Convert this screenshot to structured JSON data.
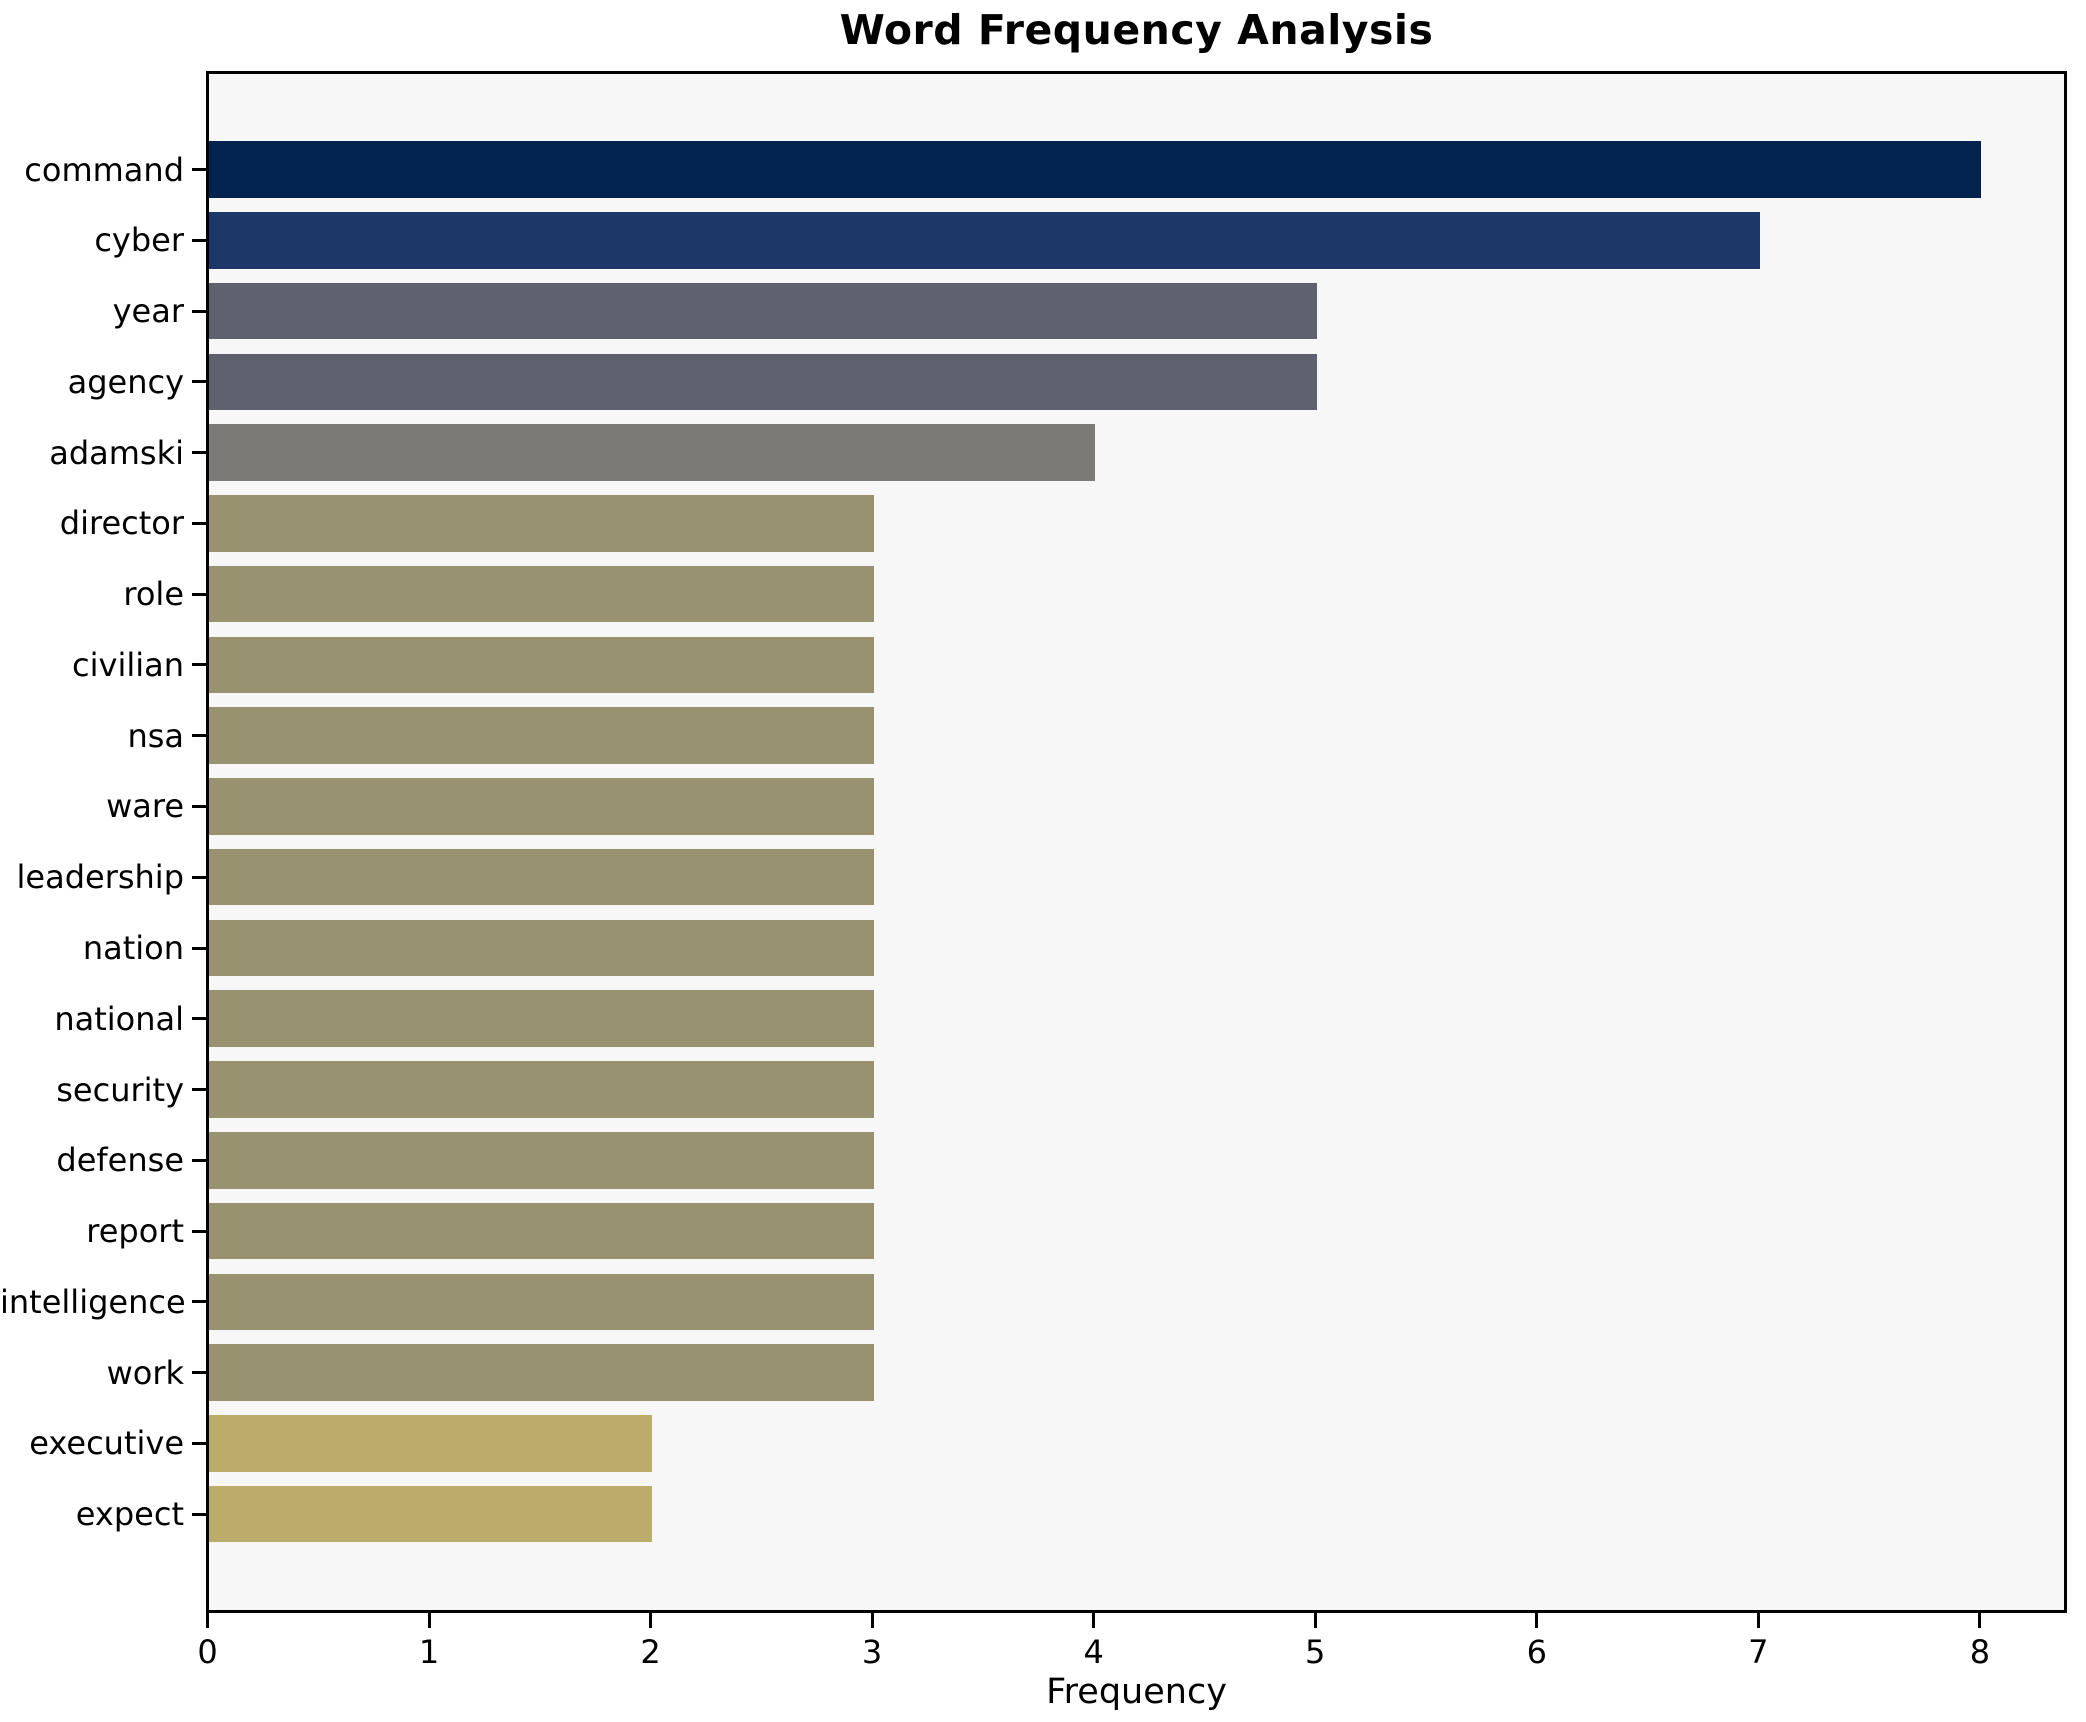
{
  "chart_data": {
    "type": "bar",
    "orientation": "horizontal",
    "title": "Word Frequency Analysis",
    "xlabel": "Frequency",
    "ylabel": "",
    "categories": [
      "command",
      "cyber",
      "year",
      "agency",
      "adamski",
      "director",
      "role",
      "civilian",
      "nsa",
      "ware",
      "leadership",
      "nation",
      "national",
      "security",
      "defense",
      "report",
      "intelligence",
      "work",
      "executive",
      "expect"
    ],
    "values": [
      8,
      7,
      5,
      5,
      4,
      3,
      3,
      3,
      3,
      3,
      3,
      3,
      3,
      3,
      3,
      3,
      3,
      3,
      2,
      2
    ],
    "bar_colors": [
      "#02234e",
      "#1d3769",
      "#5f626e",
      "#5f626e",
      "#7b7a77",
      "#989271",
      "#989271",
      "#989271",
      "#989271",
      "#989271",
      "#989271",
      "#989271",
      "#989271",
      "#989271",
      "#989271",
      "#989271",
      "#989271",
      "#989271",
      "#bcac6b",
      "#bcac6b"
    ],
    "xlim": [
      0,
      8.4
    ],
    "xticks": [
      0,
      1,
      2,
      3,
      4,
      5,
      6,
      7,
      8
    ],
    "grid": false,
    "legend": false,
    "colors": {
      "figure_background": "#ffffff",
      "plot_background": "#f7f7f8",
      "axis": "#000000",
      "text": "#000000"
    }
  }
}
